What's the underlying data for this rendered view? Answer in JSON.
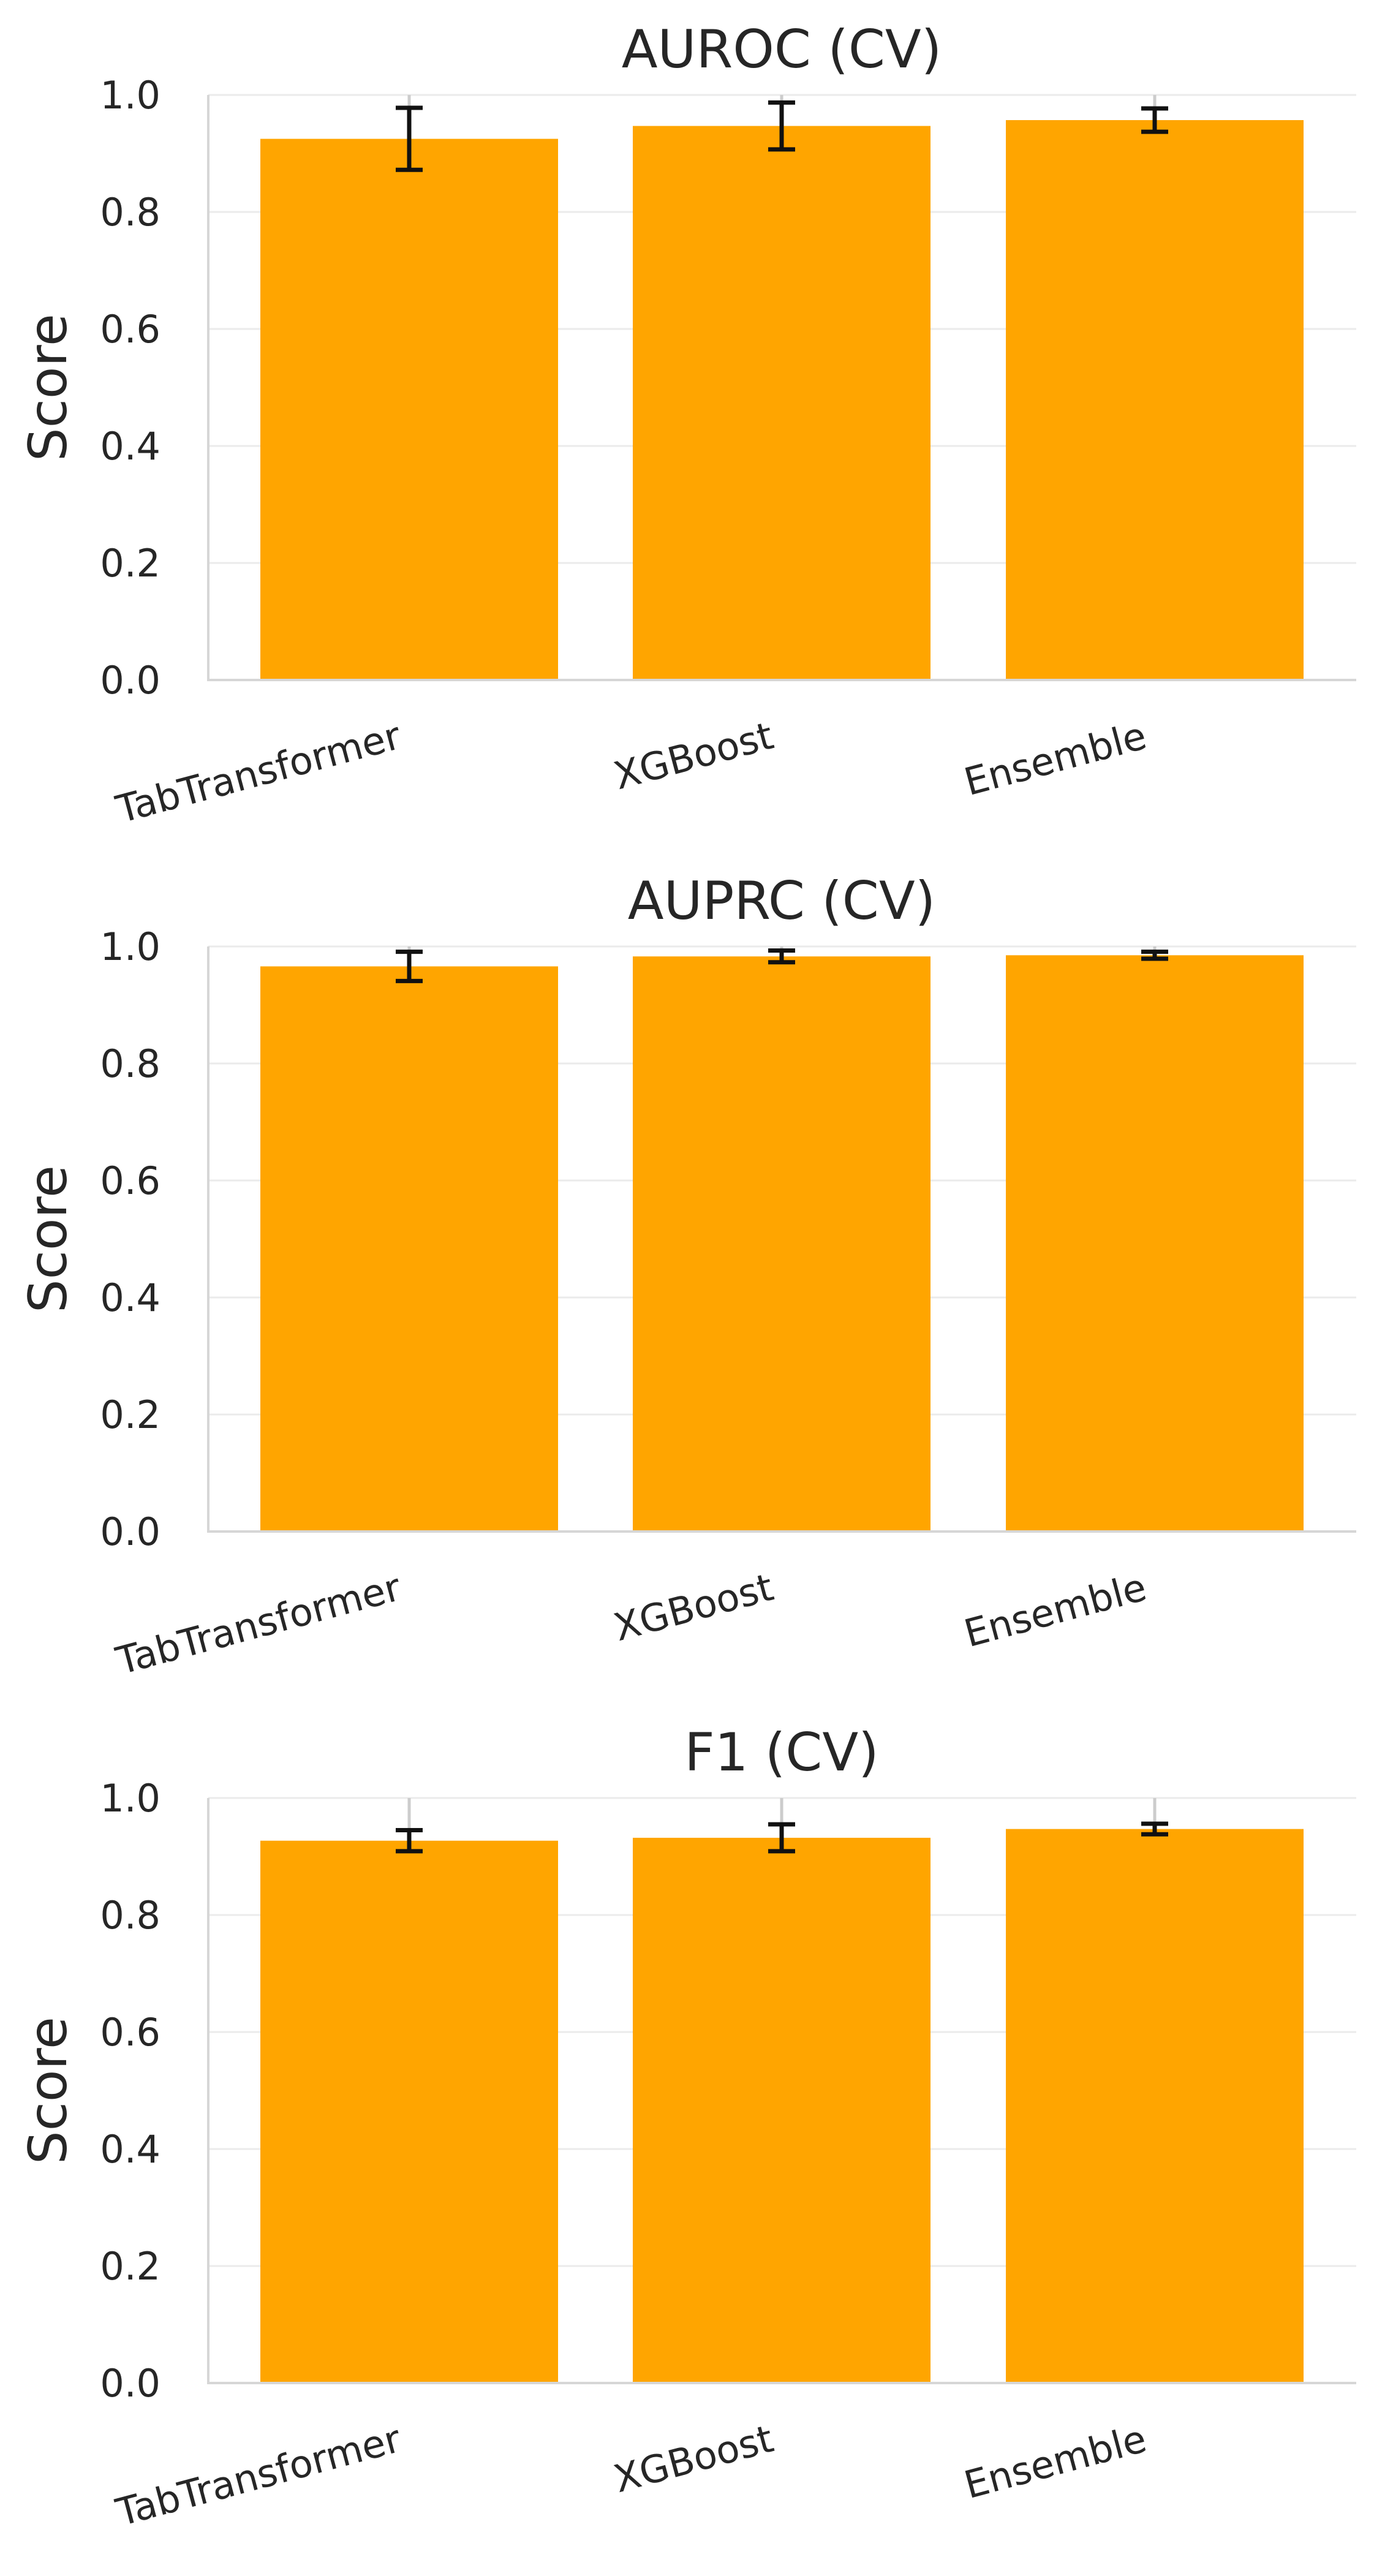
{
  "chart_data": [
    {
      "type": "bar",
      "title": "AUROC (CV)",
      "xlabel": "",
      "ylabel": "Score",
      "categories": [
        "TabTransformer",
        "XGBoost",
        "Ensemble"
      ],
      "values": [
        0.925,
        0.947,
        0.957
      ],
      "errors": [
        0.053,
        0.04,
        0.02
      ],
      "ylim": [
        0,
        1.0
      ],
      "yticks": [
        "0.0",
        "0.2",
        "0.4",
        "0.6",
        "0.8",
        "1.0"
      ],
      "bar_color": "#FFA500",
      "grid": true
    },
    {
      "type": "bar",
      "title": "AUPRC (CV)",
      "xlabel": "",
      "ylabel": "Score",
      "categories": [
        "TabTransformer",
        "XGBoost",
        "Ensemble"
      ],
      "values": [
        0.966,
        0.983,
        0.985
      ],
      "errors": [
        0.025,
        0.01,
        0.006
      ],
      "ylim": [
        0,
        1.0
      ],
      "yticks": [
        "0.0",
        "0.2",
        "0.4",
        "0.6",
        "0.8",
        "1.0"
      ],
      "bar_color": "#FFA500",
      "grid": true
    },
    {
      "type": "bar",
      "title": "F1 (CV)",
      "xlabel": "",
      "ylabel": "Score",
      "categories": [
        "TabTransformer",
        "XGBoost",
        "Ensemble"
      ],
      "values": [
        0.927,
        0.932,
        0.947
      ],
      "errors": [
        0.018,
        0.023,
        0.009
      ],
      "ylim": [
        0,
        1.0
      ],
      "yticks": [
        "0.0",
        "0.2",
        "0.4",
        "0.6",
        "0.8",
        "1.0"
      ],
      "bar_color": "#FFA500",
      "grid": true
    }
  ]
}
